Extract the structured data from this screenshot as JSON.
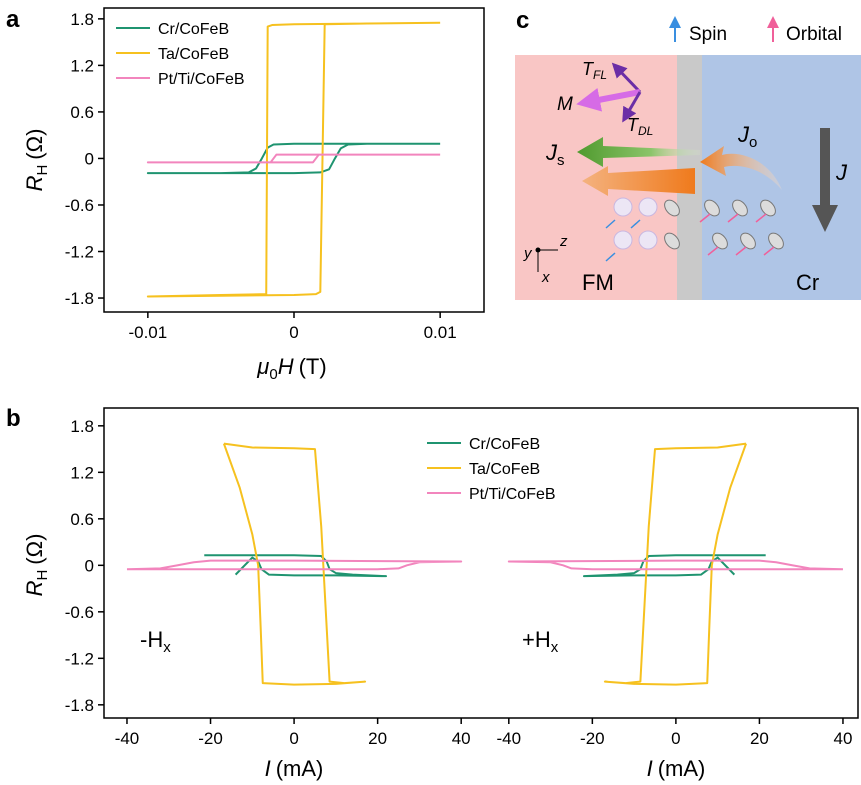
{
  "chart_data": [
    {
      "type": "line",
      "panel_label": "a",
      "xlabel": {
        "symbol": "μ",
        "sub": "0",
        "main": "H",
        "unit": "(T)"
      },
      "ylabel": {
        "main": "R",
        "sub": "H",
        "unit": "(Ω)"
      },
      "xlim": [
        -0.013,
        0.013
      ],
      "xticks": [
        -0.01,
        0,
        0.01
      ],
      "ylim": [
        -1.98,
        1.94
      ],
      "yticks": [
        1.8,
        1.2,
        0.6,
        0,
        -0.6,
        -1.2,
        -1.8
      ],
      "legend": "upper left",
      "series": [
        {
          "name": "Cr/CoFeB",
          "color": "#1f9470",
          "x": [
            0.01,
            0,
            -0.0014,
            -0.0018,
            -0.0022,
            -0.0026,
            -0.0031,
            -0.005,
            -0.01,
            0,
            0.0018,
            0.0024,
            0.0028,
            0.0032,
            0.0037,
            0.005,
            0.01
          ],
          "values": [
            0.19,
            0.19,
            0.18,
            0.14,
            0.0,
            -0.13,
            -0.18,
            -0.19,
            -0.19,
            -0.19,
            -0.18,
            -0.14,
            0.0,
            0.13,
            0.18,
            0.19,
            0.19
          ]
        },
        {
          "name": "Ta/CoFeB",
          "color": "#f6c11f",
          "x": [
            0.01,
            0.005,
            0,
            -0.0015,
            -0.0018,
            -0.0019,
            -0.005,
            -0.01,
            -0.005,
            0,
            0.0015,
            0.0018,
            0.0021,
            0.005,
            0.01
          ],
          "values": [
            1.75,
            1.74,
            1.73,
            1.72,
            1.7,
            -1.75,
            -1.76,
            -1.78,
            -1.77,
            -1.76,
            -1.75,
            -1.72,
            1.73,
            1.74,
            1.75
          ]
        },
        {
          "name": "Pt/Ti/CoFeB",
          "color": "#f285bd",
          "x": [
            0.01,
            -0.0012,
            -0.0014,
            -0.0016,
            -0.01,
            0.0013,
            0.0015,
            0.0017,
            0.01
          ],
          "values": [
            0.05,
            0.05,
            0.0,
            -0.05,
            -0.05,
            -0.05,
            0.0,
            0.05,
            0.05
          ]
        }
      ]
    },
    {
      "type": "line",
      "panel_label": "b",
      "xlabel": {
        "main": "I",
        "unit": "(mA)"
      },
      "ylabel": {
        "main": "R",
        "sub": "H",
        "unit": "(Ω)"
      },
      "annotation": {
        "main": "-H",
        "sub": "x"
      },
      "xlim": [
        -45.5,
        45.7
      ],
      "xticks": [
        -40,
        -20,
        0,
        20,
        40
      ],
      "ylim": [
        -1.97,
        2.03
      ],
      "yticks": [
        1.8,
        1.2,
        0.6,
        0,
        -0.6,
        -1.2,
        -1.8
      ],
      "legend": "upper center",
      "series": [
        {
          "name": "Cr/CoFeB",
          "color": "#1f9470",
          "x": [
            -21.5,
            -10,
            0,
            6.5,
            7.8,
            8.5,
            10,
            14,
            22,
            10,
            0,
            -6,
            -7.8,
            -8.6,
            -10,
            -14
          ],
          "values": [
            0.13,
            0.13,
            0.13,
            0.12,
            0.05,
            -0.05,
            -0.1,
            -0.12,
            -0.14,
            -0.13,
            -0.13,
            -0.12,
            -0.05,
            0.05,
            0.1,
            -0.12
          ]
        },
        {
          "name": "Ta/CoFeB",
          "color": "#f6c11f",
          "x": [
            -16.8,
            -10,
            0,
            5,
            6.5,
            7.5,
            8.5,
            12,
            17,
            10,
            0,
            -7.5,
            -8,
            -8.6,
            -10,
            -13,
            -16.8
          ],
          "values": [
            1.57,
            1.52,
            1.51,
            1.5,
            0.5,
            -0.5,
            -1.5,
            -1.52,
            -1.5,
            -1.53,
            -1.54,
            -1.52,
            -0.8,
            0.0,
            0.4,
            1.0,
            1.57
          ]
        },
        {
          "name": "Pt/Ti/CoFeB",
          "color": "#f285bd",
          "x": [
            -40,
            -32,
            -28,
            -24,
            -20,
            0,
            40,
            30,
            27,
            25,
            20,
            0,
            -40
          ],
          "values": [
            -0.05,
            -0.04,
            0.0,
            0.04,
            0.06,
            0.06,
            0.05,
            0.04,
            0.0,
            -0.04,
            -0.05,
            -0.05,
            -0.05
          ]
        }
      ]
    },
    {
      "type": "line",
      "xlabel": {
        "main": "I",
        "unit": "(mA)"
      },
      "annotation": {
        "main": "+H",
        "sub": "x"
      },
      "xlim": [
        -45.7,
        43.6
      ],
      "xticks": [
        -40,
        -20,
        0,
        20,
        40
      ],
      "ylim": [
        -1.97,
        2.03
      ],
      "series": [
        {
          "color": "#1f9470",
          "x": [
            21.5,
            10,
            0,
            -6.5,
            -7.8,
            -8.5,
            -10,
            -14,
            -22,
            -10,
            0,
            6,
            7.8,
            8.6,
            10,
            14
          ],
          "values": [
            0.13,
            0.13,
            0.13,
            0.12,
            0.05,
            -0.05,
            -0.1,
            -0.12,
            -0.14,
            -0.13,
            -0.13,
            -0.12,
            -0.05,
            0.05,
            0.1,
            -0.12
          ]
        },
        {
          "color": "#f6c11f",
          "x": [
            16.8,
            10,
            0,
            -5,
            -6.5,
            -7.5,
            -8.5,
            -12,
            -17,
            -10,
            0,
            7.5,
            8,
            8.6,
            10,
            13,
            16.8
          ],
          "values": [
            1.57,
            1.52,
            1.51,
            1.5,
            0.5,
            -0.5,
            -1.5,
            -1.52,
            -1.5,
            -1.53,
            -1.54,
            -1.52,
            -0.8,
            0.0,
            0.4,
            1.0,
            1.57
          ]
        },
        {
          "color": "#f285bd",
          "x": [
            40,
            32,
            28,
            24,
            20,
            0,
            -40,
            -30,
            -27,
            -25,
            -20,
            0,
            40
          ],
          "values": [
            -0.05,
            -0.04,
            0.0,
            0.04,
            0.06,
            0.06,
            0.05,
            0.04,
            0.0,
            -0.04,
            -0.05,
            -0.05,
            -0.05
          ]
        }
      ]
    }
  ],
  "diagram": {
    "panel_label": "c",
    "legend": {
      "spin": "Spin",
      "orbital": "Orbital"
    },
    "torque_fl": {
      "main": "T",
      "sub": "FL"
    },
    "magnetization": "M",
    "torque_dl": {
      "main": "T",
      "sub": "DL"
    },
    "spin_current": {
      "main": "J",
      "sub": "s"
    },
    "orbital_current": {
      "main": "J",
      "sub": "o"
    },
    "charge_current": "J",
    "ferromagnet": "FM",
    "heavy_metal": "Cr",
    "axes": {
      "y": "y",
      "z": "z",
      "x": "x"
    }
  }
}
